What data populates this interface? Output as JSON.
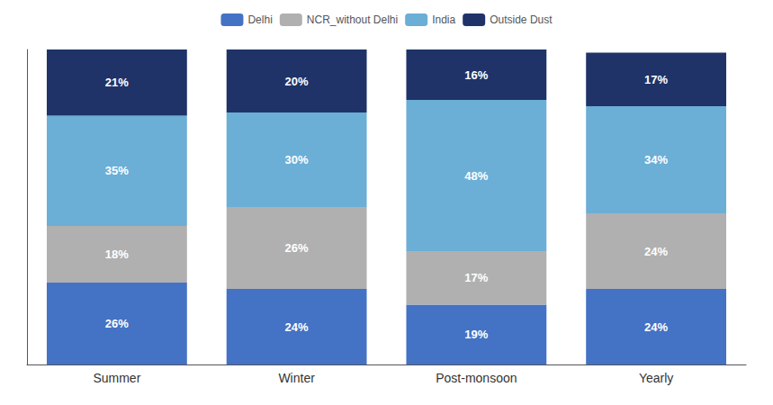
{
  "chart_data": {
    "type": "bar",
    "stacked": true,
    "categories": [
      "Summer",
      "Winter",
      "Post-monsoon",
      "Yearly"
    ],
    "series": [
      {
        "name": "Delhi",
        "color": "#4472C4",
        "values": [
          26,
          24,
          19,
          24
        ],
        "value_labels": [
          "26%",
          "24%",
          "19%",
          "24%"
        ]
      },
      {
        "name": "NCR_without Delhi",
        "color": "#B0B0B0",
        "values": [
          18,
          26,
          17,
          24
        ],
        "value_labels": [
          "18%",
          "26%",
          "17%",
          "24%"
        ]
      },
      {
        "name": "India",
        "color": "#6BAED6",
        "values": [
          35,
          30,
          48,
          34
        ],
        "value_labels": [
          "35%",
          "30%",
          "48%",
          "34%"
        ]
      },
      {
        "name": "Outside Dust",
        "color": "#1F3368",
        "values": [
          21,
          20,
          16,
          17
        ],
        "value_labels": [
          "21%",
          "20%",
          "16%",
          "17%"
        ]
      }
    ],
    "ylim": [
      0,
      100
    ],
    "grid": false,
    "legend": "top",
    "data_labels": true,
    "tick_labels": "x"
  }
}
